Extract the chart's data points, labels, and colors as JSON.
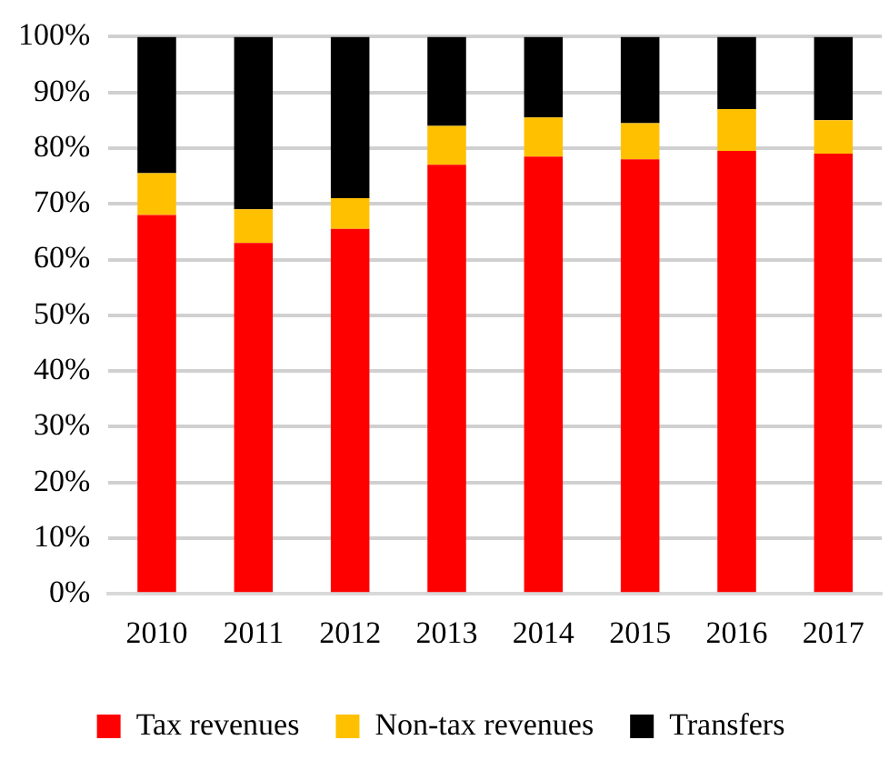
{
  "chart_data": {
    "type": "bar",
    "stacked": true,
    "categories": [
      "2010",
      "2011",
      "2012",
      "2013",
      "2014",
      "2015",
      "2016",
      "2017"
    ],
    "series": [
      {
        "name": "Tax revenues",
        "color": "#ff0000",
        "values": [
          68,
          63,
          65.5,
          77,
          78.5,
          78,
          79.5,
          79
        ]
      },
      {
        "name": "Non-tax revenues",
        "color": "#ffc000",
        "values": [
          7.5,
          6,
          5.5,
          7,
          7,
          6.5,
          7.5,
          6
        ]
      },
      {
        "name": "Transfers",
        "color": "#000000",
        "values": [
          24.5,
          31,
          29,
          16,
          14.5,
          15.5,
          13,
          15
        ]
      }
    ],
    "ylim": [
      0,
      100
    ],
    "yticks": [
      {
        "value": 0,
        "label": "0%"
      },
      {
        "value": 10,
        "label": "10%"
      },
      {
        "value": 20,
        "label": "20%"
      },
      {
        "value": 30,
        "label": "30%"
      },
      {
        "value": 40,
        "label": "40%"
      },
      {
        "value": 50,
        "label": "50%"
      },
      {
        "value": 60,
        "label": "60%"
      },
      {
        "value": 70,
        "label": "70%"
      },
      {
        "value": 80,
        "label": "80%"
      },
      {
        "value": 90,
        "label": "90%"
      },
      {
        "value": 100,
        "label": "100%"
      }
    ],
    "grid": "y",
    "legend": "bottom"
  }
}
